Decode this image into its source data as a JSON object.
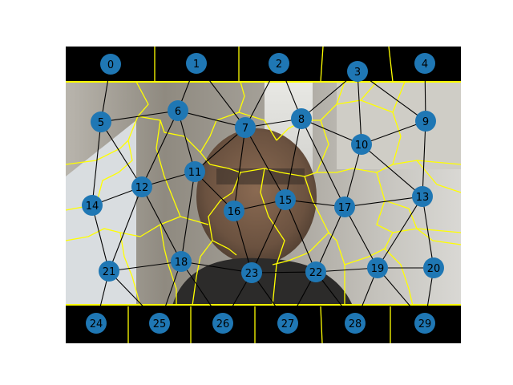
{
  "colors": {
    "node_fill": "#1f77b4",
    "edge": "#000000",
    "segment_boundary": "#ffff00",
    "border_band": "#000000",
    "background": "#ffffff"
  },
  "graph": {
    "nodes": [
      {
        "id": 0,
        "label": "0"
      },
      {
        "id": 1,
        "label": "1"
      },
      {
        "id": 2,
        "label": "2"
      },
      {
        "id": 3,
        "label": "3"
      },
      {
        "id": 4,
        "label": "4"
      },
      {
        "id": 5,
        "label": "5"
      },
      {
        "id": 6,
        "label": "6"
      },
      {
        "id": 7,
        "label": "7"
      },
      {
        "id": 8,
        "label": "8"
      },
      {
        "id": 9,
        "label": "9"
      },
      {
        "id": 10,
        "label": "10"
      },
      {
        "id": 11,
        "label": "11"
      },
      {
        "id": 12,
        "label": "12"
      },
      {
        "id": 13,
        "label": "13"
      },
      {
        "id": 14,
        "label": "14"
      },
      {
        "id": 15,
        "label": "15"
      },
      {
        "id": 16,
        "label": "16"
      },
      {
        "id": 17,
        "label": "17"
      },
      {
        "id": 18,
        "label": "18"
      },
      {
        "id": 19,
        "label": "19"
      },
      {
        "id": 20,
        "label": "20"
      },
      {
        "id": 21,
        "label": "21"
      },
      {
        "id": 22,
        "label": "22"
      },
      {
        "id": 23,
        "label": "23"
      },
      {
        "id": 24,
        "label": "24"
      },
      {
        "id": 25,
        "label": "25"
      },
      {
        "id": 26,
        "label": "26"
      },
      {
        "id": 27,
        "label": "27"
      },
      {
        "id": 28,
        "label": "28"
      },
      {
        "id": 29,
        "label": "29"
      }
    ],
    "edges": [
      [
        0,
        5
      ],
      [
        1,
        6
      ],
      [
        1,
        7
      ],
      [
        2,
        7
      ],
      [
        2,
        8
      ],
      [
        3,
        8
      ],
      [
        3,
        9
      ],
      [
        3,
        10
      ],
      [
        4,
        9
      ],
      [
        5,
        6
      ],
      [
        5,
        12
      ],
      [
        5,
        14
      ],
      [
        6,
        7
      ],
      [
        6,
        11
      ],
      [
        6,
        12
      ],
      [
        7,
        8
      ],
      [
        7,
        11
      ],
      [
        7,
        15
      ],
      [
        7,
        16
      ],
      [
        8,
        10
      ],
      [
        8,
        15
      ],
      [
        8,
        17
      ],
      [
        9,
        10
      ],
      [
        9,
        13
      ],
      [
        10,
        13
      ],
      [
        10,
        17
      ],
      [
        11,
        12
      ],
      [
        11,
        16
      ],
      [
        11,
        18
      ],
      [
        12,
        14
      ],
      [
        12,
        18
      ],
      [
        12,
        21
      ],
      [
        13,
        17
      ],
      [
        13,
        19
      ],
      [
        13,
        20
      ],
      [
        14,
        21
      ],
      [
        15,
        16
      ],
      [
        15,
        17
      ],
      [
        15,
        22
      ],
      [
        15,
        23
      ],
      [
        16,
        23
      ],
      [
        17,
        19
      ],
      [
        17,
        22
      ],
      [
        18,
        21
      ],
      [
        18,
        23
      ],
      [
        18,
        25
      ],
      [
        18,
        26
      ],
      [
        19,
        20
      ],
      [
        19,
        22
      ],
      [
        19,
        28
      ],
      [
        19,
        29
      ],
      [
        20,
        29
      ],
      [
        21,
        24
      ],
      [
        21,
        25
      ],
      [
        22,
        23
      ],
      [
        22,
        27
      ],
      [
        22,
        28
      ],
      [
        23,
        26
      ],
      [
        23,
        27
      ]
    ]
  }
}
